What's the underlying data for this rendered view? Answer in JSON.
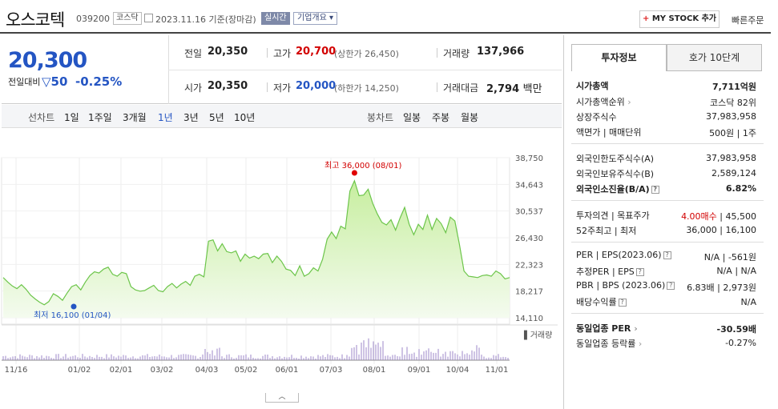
{
  "header": {
    "company_name": "오스코텍",
    "code": "039200",
    "market": "코스닥",
    "date": "2023.11.16",
    "date_suffix": "기준(장마감)",
    "live_label": "실시간",
    "corp_info_label": "기업개요",
    "mystock_label": "MY STOCK 추가",
    "quick_order_label": "빠른주문"
  },
  "price": {
    "current": "20,300",
    "change_label": "전일대비",
    "change_value": "50",
    "change_pct": "-0.25%",
    "prev_close_label": "전일",
    "prev_close": "20,350",
    "high_label": "고가",
    "high": "20,700",
    "upper_limit": "(상한가 26,450)",
    "volume_label": "거래량",
    "volume": "137,966",
    "open_label": "시가",
    "open": "20,350",
    "low_label": "저가",
    "low": "20,000",
    "lower_limit": "(하한가 14,250)",
    "trade_value_label": "거래대금",
    "trade_value": "2,794",
    "trade_value_unit": "백만"
  },
  "period_bar": {
    "line_label": "선차트",
    "periods": [
      "1일",
      "1주일",
      "3개월",
      "1년",
      "3년",
      "5년",
      "10년"
    ],
    "selected": "1년",
    "candle_label": "봉차트",
    "candles": [
      "일봉",
      "주봉",
      "월봉"
    ]
  },
  "chart_data": {
    "type": "area",
    "y_ticks": [
      38750,
      34643,
      30537,
      26430,
      22323,
      18217,
      14110
    ],
    "x_ticks": [
      "11/16",
      "01/02",
      "02/01",
      "03/02",
      "04/03",
      "05/02",
      "06/01",
      "07/03",
      "08/01",
      "09/01",
      "10/04",
      "11/01"
    ],
    "ylim": [
      14110,
      38750
    ],
    "max_label": "최고 36,000 (08/01)",
    "min_label": "최저 16,100 (01/04)",
    "volume_label": "거래량",
    "values": [
      20300,
      19600,
      19000,
      18600,
      19200,
      18500,
      17600,
      17000,
      16500,
      16100,
      16600,
      17800,
      17400,
      16800,
      17900,
      18900,
      19200,
      18400,
      19600,
      20600,
      21200,
      21000,
      21600,
      21900,
      20800,
      20500,
      21100,
      20900,
      18900,
      18400,
      18200,
      18300,
      18700,
      19100,
      18300,
      18100,
      18900,
      19400,
      18700,
      19300,
      19700,
      19100,
      20500,
      20800,
      20400,
      25900,
      26100,
      24400,
      25500,
      24300,
      24100,
      24400,
      22800,
      23900,
      23300,
      23600,
      23200,
      23900,
      24000,
      22600,
      23600,
      22800,
      21600,
      21400,
      20600,
      22100,
      20500,
      20900,
      21800,
      21300,
      23100,
      26200,
      27300,
      26300,
      28200,
      27800,
      33600,
      35200,
      32900,
      33000,
      33900,
      31700,
      30100,
      28800,
      28400,
      29200,
      27600,
      29500,
      31100,
      28500,
      26900,
      28500,
      27700,
      29900,
      27700,
      29400,
      28600,
      27200,
      29600,
      29000,
      25400,
      21300,
      20500,
      20400,
      20300,
      20600,
      20700,
      20500,
      21300,
      20900,
      20100,
      20300
    ]
  },
  "right_panel": {
    "tab_invest": "투자정보",
    "tab_hoga": "호가 10단계",
    "rows": [
      {
        "label": "시가총액",
        "value": "7,711억원",
        "bold": true
      },
      {
        "label": "시가총액순위",
        "value": "코스닥 82위"
      },
      {
        "label": "상장주식수",
        "value": "37,983,958"
      },
      {
        "label": "액면가 | 매매단위",
        "value": "500원 | 1주"
      },
      {
        "label": "외국인한도주식수(A)",
        "value": "37,983,958"
      },
      {
        "label": "외국인보유주식수(B)",
        "value": "2,589,124"
      },
      {
        "label": "외국인소진율(B/A)",
        "value": "6.82%",
        "bold": true
      },
      {
        "label": "투자의견 | 목표주가",
        "value_red": "4.00매수",
        "value": "45,500"
      },
      {
        "label": "52주최고 | 최저",
        "value": "36,000 | 16,100"
      },
      {
        "label": "PER | EPS(2023.06)",
        "value": "N/A | -561원"
      },
      {
        "label": "추정PER | EPS",
        "value": "N/A | N/A"
      },
      {
        "label": "PBR | BPS (2023.06)",
        "value": "6.83배 | 2,973원"
      },
      {
        "label": "배당수익률",
        "value": "N/A"
      },
      {
        "label": "동일업종 PER",
        "value": "-30.59배",
        "bold": true
      },
      {
        "label": "동일업종 등락률",
        "value": "-0.27%",
        "blue": true
      }
    ]
  },
  "colors": {
    "blue": "#2455c3",
    "red": "#d20000",
    "line": "#6cc54a",
    "fill": "#d6f2c8"
  }
}
